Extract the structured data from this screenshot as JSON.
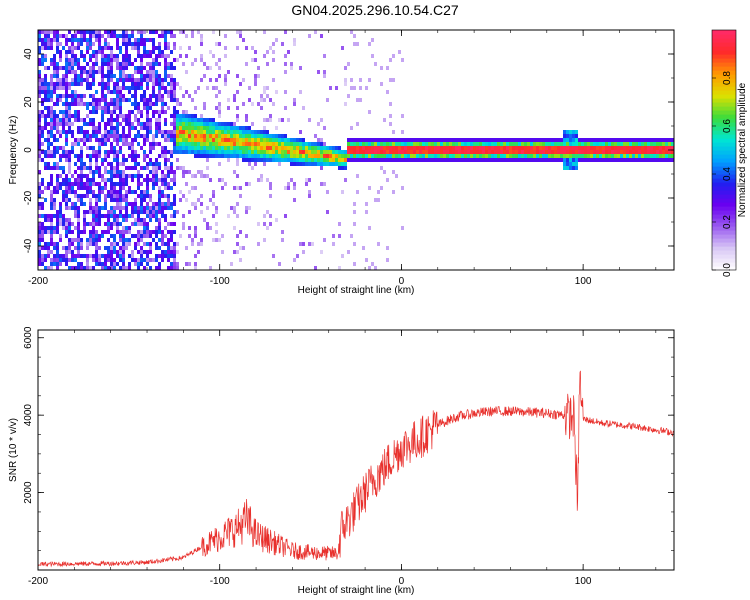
{
  "title": "GN04.2025.296.10.54.C27",
  "colors": {
    "snr_line": "#e8302c",
    "colormap": [
      "#ffffff",
      "#d9c8f5",
      "#9a5cf0",
      "#6a00f0",
      "#2020f0",
      "#00a0ff",
      "#00e6d2",
      "#3cdc3c",
      "#dde000",
      "#ff9a00",
      "#ff2a2a",
      "#ff2a6a"
    ]
  },
  "chart_data": [
    {
      "type": "heatmap",
      "name": "spectrogram",
      "title": "",
      "xlabel": "Height of straight line (km)",
      "ylabel": "Frequency (Hz)",
      "xlim": [
        -200,
        150
      ],
      "ylim": [
        -50,
        50
      ],
      "xticks": [
        -200,
        -100,
        0,
        100
      ],
      "yticks": [
        -40,
        -20,
        0,
        20,
        40
      ],
      "colorbar": {
        "label": "Normalized spectral amplitude",
        "range": [
          0.0,
          1.0
        ],
        "ticks": [
          0.0,
          0.2,
          0.4,
          0.6,
          0.8
        ]
      },
      "regions": [
        {
          "x": [
            -200,
            -125
          ],
          "description": "noise",
          "amplitude": 0.35
        },
        {
          "x": [
            -125,
            -30
          ],
          "description": "signal emerging",
          "freq_center_start": 8,
          "freq_center_end": -3
        },
        {
          "x": [
            -30,
            150
          ],
          "description": "strong carrier",
          "freq_center": 1,
          "amplitude": 0.95
        }
      ]
    },
    {
      "type": "line",
      "name": "snr",
      "title": "",
      "xlabel": "Height of straight line (km)",
      "ylabel": "SNR (10 * v/v)",
      "xlim": [
        -200,
        150
      ],
      "ylim": [
        0,
        6200
      ],
      "xticks": [
        -200,
        -100,
        0,
        100
      ],
      "yticks": [
        2000,
        4000,
        6000
      ],
      "series": [
        {
          "name": "SNR",
          "x": [
            -200,
            -180,
            -160,
            -140,
            -120,
            -110,
            -100,
            -90,
            -85,
            -80,
            -70,
            -60,
            -50,
            -35,
            -33,
            -25,
            -20,
            -15,
            -10,
            -5,
            0,
            10,
            20,
            30,
            40,
            50,
            60,
            70,
            80,
            90,
            95,
            97,
            98,
            100,
            110,
            120,
            130,
            140,
            150
          ],
          "values": [
            150,
            160,
            170,
            200,
            320,
            600,
            850,
            1100,
            1300,
            900,
            700,
            500,
            450,
            420,
            1050,
            1600,
            2000,
            2350,
            2600,
            2900,
            3150,
            3400,
            3750,
            3950,
            4050,
            4100,
            4100,
            4080,
            4050,
            4000,
            3950,
            1500,
            5000,
            3900,
            3800,
            3750,
            3700,
            3620,
            3550
          ]
        }
      ]
    }
  ]
}
